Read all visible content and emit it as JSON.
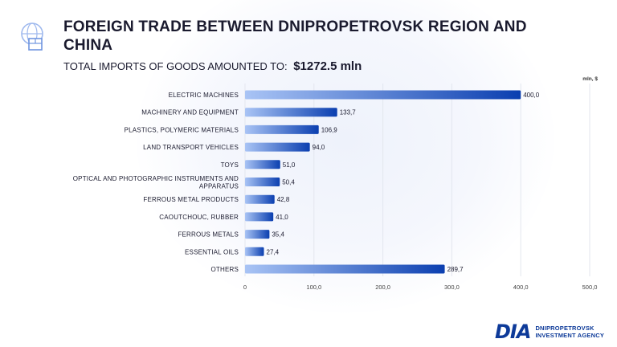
{
  "header": {
    "title": "FOREIGN TRADE BETWEEN DNIPROPETROVSK REGION AND CHINA",
    "subtitle_prefix": "TOTAL IMPORTS OF GOODS AMOUNTED TO:",
    "subtitle_amount": "$1272.5 mln",
    "icon": "globe-box-icon"
  },
  "chart_data": {
    "type": "bar",
    "orientation": "horizontal",
    "unit_label": "mln, $",
    "categories": [
      "ELECTRIC MACHINES",
      "MACHINERY AND EQUIPMENT",
      "PLASTICS, POLYMERIC MATERIALS",
      "LAND TRANSPORT VEHICLES",
      "TOYS",
      "OPTICAL AND PHOTOGRAPHIC INSTRUMENTS AND APPARATUS",
      "FERROUS METAL PRODUCTS",
      "CAOUTCHOUC, RUBBER",
      "FERROUS METALS",
      "ESSENTIAL OILS",
      "OTHERS"
    ],
    "values": [
      400.0,
      133.7,
      106.9,
      94.0,
      51.0,
      50.4,
      42.8,
      41.0,
      35.4,
      27.4,
      289.7
    ],
    "value_labels": [
      "400,0",
      "133,7",
      "106,9",
      "94,0",
      "51,0",
      "50,4",
      "42,8",
      "41,0",
      "35,4",
      "27,4",
      "289,7"
    ],
    "xlim": [
      0,
      500
    ],
    "ticks": [
      0,
      100,
      200,
      300,
      400,
      500
    ],
    "tick_labels": [
      "0",
      "100,0",
      "200,0",
      "300,0",
      "400,0",
      "500,0"
    ],
    "grid": true,
    "colors": {
      "bar_start": "#a9c4f5",
      "bar_end": "#0b3fb0",
      "grid": "#e3e6ee"
    }
  },
  "brand": {
    "mark": "DIA",
    "line1": "DNIPROPETROVSK",
    "line2": "INVESTMENT AGENCY",
    "color": "#0d3a99"
  }
}
